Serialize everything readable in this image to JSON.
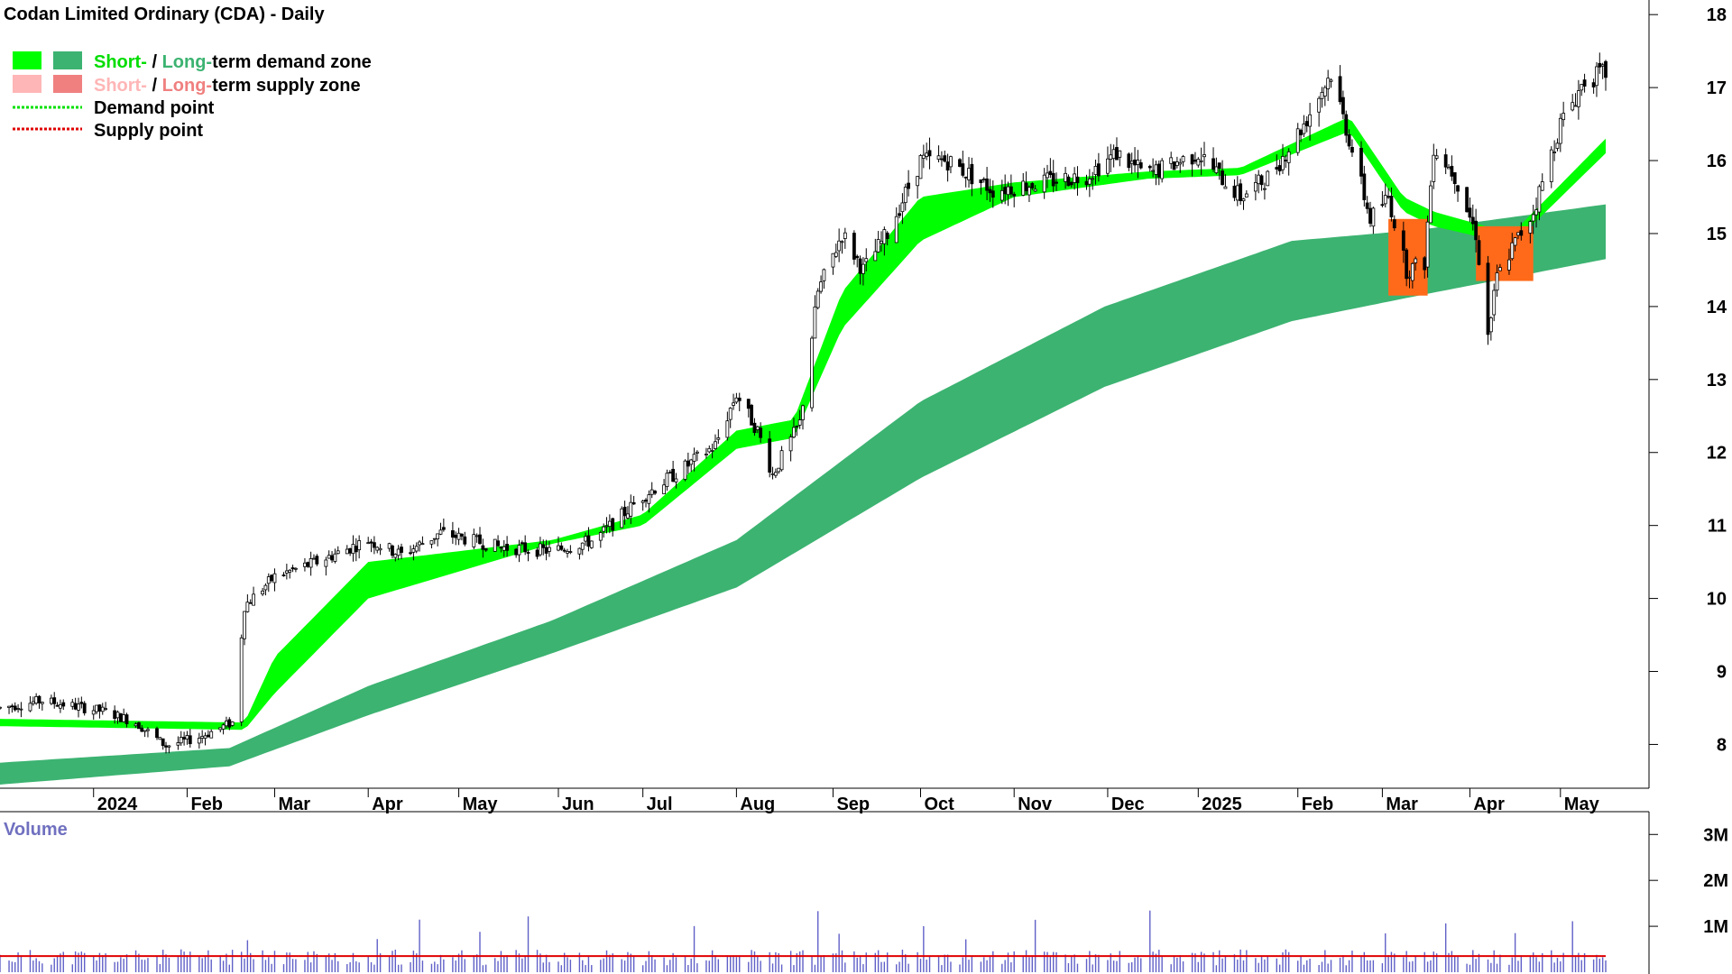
{
  "title": "Codan Limited Ordinary (CDA) - Daily",
  "colors": {
    "short_demand": "#00ff00",
    "long_demand": "#3cb371",
    "short_supply": "#ffb6b6",
    "long_supply": "#f08080",
    "supply_fill": "#ff6a1a",
    "demand_point": "#00e000",
    "supply_point": "#e00000",
    "volume_bar": "#6060c8",
    "volume_avg": "#e00000",
    "volume_label": "#7070c0"
  },
  "legend": {
    "row1": {
      "short": "Short-",
      "sep": " / ",
      "long": "Long-",
      "rest": "term demand zone"
    },
    "row2": {
      "short": "Short-",
      "sep": " / ",
      "long": "Long-",
      "rest": "term supply zone"
    },
    "row3": "Demand point",
    "row4": "Supply point"
  },
  "volume": {
    "label": "Volume",
    "ticks": [
      "3M",
      "2M",
      "1M"
    ],
    "tick_values": [
      3000000,
      2000000,
      1000000
    ],
    "average": 350000
  },
  "chart_data": {
    "type": "candlestick",
    "title": "Codan Limited Ordinary (CDA) - Daily",
    "y_ticks": [
      "18",
      "17",
      "16",
      "15",
      "14",
      "13",
      "12",
      "11",
      "10",
      "9",
      "8"
    ],
    "ylim": [
      7.4,
      18.2
    ],
    "x_ticks": [
      "2024",
      "Feb",
      "Mar",
      "Apr",
      "May",
      "Jun",
      "Jul",
      "Aug",
      "Sep",
      "Oct",
      "Nov",
      "Dec",
      "2025",
      "Feb",
      "Mar",
      "Apr",
      "May"
    ],
    "x_tick_dates": [
      "2024-01-01",
      "2024-02-01",
      "2024-03-01",
      "2024-04-01",
      "2024-05-01",
      "2024-06-03",
      "2024-07-01",
      "2024-08-01",
      "2024-09-02",
      "2024-10-01",
      "2024-11-01",
      "2024-12-02",
      "2025-01-01",
      "2025-02-03",
      "2025-03-03",
      "2025-04-01",
      "2025-05-01"
    ],
    "x_range": [
      "2023-12-01",
      "2025-05-16"
    ],
    "price_anchors": [
      [
        "2023-12-01",
        8.5
      ],
      [
        "2023-12-15",
        8.6
      ],
      [
        "2024-01-05",
        8.45
      ],
      [
        "2024-01-15",
        8.3
      ],
      [
        "2024-01-25",
        7.98
      ],
      [
        "2024-02-05",
        8.1
      ],
      [
        "2024-02-16",
        8.3
      ],
      [
        "2024-02-20",
        9.9
      ],
      [
        "2024-03-01",
        10.3
      ],
      [
        "2024-03-15",
        10.5
      ],
      [
        "2024-04-01",
        10.8
      ],
      [
        "2024-04-12",
        10.6
      ],
      [
        "2024-04-25",
        10.9
      ],
      [
        "2024-05-15",
        10.7
      ],
      [
        "2024-06-01",
        10.65
      ],
      [
        "2024-06-15",
        10.8
      ],
      [
        "2024-07-01",
        11.4
      ],
      [
        "2024-07-15",
        11.8
      ],
      [
        "2024-07-25",
        12.1
      ],
      [
        "2024-08-01",
        12.8
      ],
      [
        "2024-08-08",
        12.3
      ],
      [
        "2024-08-13",
        11.7
      ],
      [
        "2024-08-22",
        12.4
      ],
      [
        "2024-08-28",
        14.2
      ],
      [
        "2024-09-05",
        15.0
      ],
      [
        "2024-09-12",
        14.5
      ],
      [
        "2024-09-20",
        15.0
      ],
      [
        "2024-10-01",
        16.0
      ],
      [
        "2024-10-10",
        16.0
      ],
      [
        "2024-10-25",
        15.6
      ],
      [
        "2024-11-10",
        15.7
      ],
      [
        "2024-11-25",
        15.8
      ],
      [
        "2024-12-05",
        16.1
      ],
      [
        "2024-12-15",
        15.8
      ],
      [
        "2025-01-01",
        16.1
      ],
      [
        "2025-01-15",
        15.5
      ],
      [
        "2025-01-25",
        15.8
      ],
      [
        "2025-02-05",
        16.5
      ],
      [
        "2025-02-14",
        17.2
      ],
      [
        "2025-02-20",
        16.3
      ],
      [
        "2025-02-27",
        15.2
      ],
      [
        "2025-03-05",
        15.5
      ],
      [
        "2025-03-11",
        14.5
      ],
      [
        "2025-03-17",
        14.6
      ],
      [
        "2025-03-20",
        16.2
      ],
      [
        "2025-03-27",
        15.8
      ],
      [
        "2025-04-03",
        15.0
      ],
      [
        "2025-04-07",
        13.6
      ],
      [
        "2025-04-10",
        14.4
      ],
      [
        "2025-04-15",
        14.8
      ],
      [
        "2025-04-22",
        15.3
      ],
      [
        "2025-05-01",
        16.5
      ],
      [
        "2025-05-09",
        17.1
      ],
      [
        "2025-05-16",
        17.2
      ]
    ],
    "long_term_zone": {
      "upper": [
        [
          "2023-12-01",
          7.75
        ],
        [
          "2024-02-15",
          7.95
        ],
        [
          "2024-04-01",
          8.8
        ],
        [
          "2024-06-01",
          9.7
        ],
        [
          "2024-08-01",
          10.8
        ],
        [
          "2024-10-01",
          12.7
        ],
        [
          "2024-12-01",
          14.0
        ],
        [
          "2025-02-01",
          14.9
        ],
        [
          "2025-03-15",
          15.05
        ],
        [
          "2025-05-16",
          15.4
        ]
      ],
      "lower": [
        [
          "2023-12-01",
          7.45
        ],
        [
          "2024-02-15",
          7.7
        ],
        [
          "2024-04-01",
          8.4
        ],
        [
          "2024-06-01",
          9.25
        ],
        [
          "2024-08-01",
          10.15
        ],
        [
          "2024-10-01",
          11.65
        ],
        [
          "2024-12-01",
          12.9
        ],
        [
          "2025-02-01",
          13.8
        ],
        [
          "2025-03-15",
          14.15
        ],
        [
          "2025-05-16",
          14.65
        ]
      ]
    },
    "short_term_zone": {
      "upper": [
        [
          "2023-12-01",
          8.35
        ],
        [
          "2024-02-20",
          8.3
        ],
        [
          "2024-03-01",
          9.2
        ],
        [
          "2024-04-01",
          10.5
        ],
        [
          "2024-06-01",
          10.8
        ],
        [
          "2024-07-01",
          11.15
        ],
        [
          "2024-08-01",
          12.3
        ],
        [
          "2024-08-20",
          12.45
        ],
        [
          "2024-09-05",
          14.2
        ],
        [
          "2024-10-01",
          15.5
        ],
        [
          "2024-11-01",
          15.7
        ],
        [
          "2024-12-15",
          15.85
        ],
        [
          "2025-01-15",
          15.9
        ],
        [
          "2025-02-20",
          16.6
        ],
        [
          "2025-03-10",
          15.5
        ],
        [
          "2025-03-20",
          15.3
        ],
        [
          "2025-04-15",
          15.0
        ],
        [
          "2025-05-16",
          16.3
        ]
      ],
      "lower": [
        [
          "2023-12-01",
          8.25
        ],
        [
          "2024-02-20",
          8.2
        ],
        [
          "2024-03-01",
          8.7
        ],
        [
          "2024-04-01",
          10.0
        ],
        [
          "2024-06-01",
          10.75
        ],
        [
          "2024-07-01",
          11.0
        ],
        [
          "2024-08-01",
          12.05
        ],
        [
          "2024-08-20",
          12.2
        ],
        [
          "2024-09-05",
          13.7
        ],
        [
          "2024-10-01",
          14.9
        ],
        [
          "2024-11-01",
          15.5
        ],
        [
          "2024-12-15",
          15.75
        ],
        [
          "2025-01-15",
          15.8
        ],
        [
          "2025-02-20",
          16.4
        ],
        [
          "2025-03-10",
          15.3
        ],
        [
          "2025-03-20",
          15.1
        ],
        [
          "2025-04-15",
          14.85
        ],
        [
          "2025-05-16",
          16.1
        ]
      ]
    },
    "supply_zones": [
      {
        "from": "2025-03-05",
        "to": "2025-03-18",
        "top": 15.2,
        "bottom": 14.15
      },
      {
        "from": "2025-04-03",
        "to": "2025-04-22",
        "top": 15.1,
        "bottom": 14.35
      }
    ]
  }
}
